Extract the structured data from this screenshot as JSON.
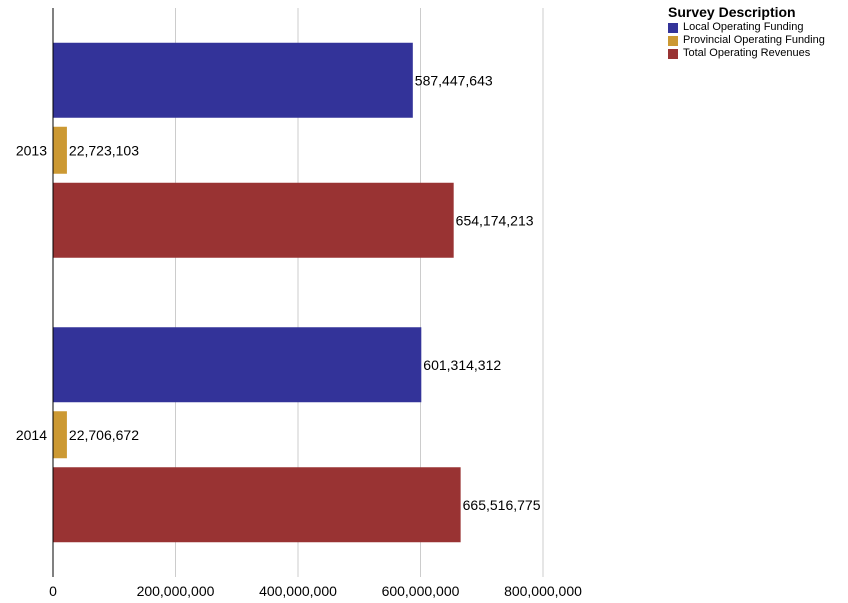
{
  "chart_data": {
    "type": "bar",
    "orientation": "horizontal",
    "categories": [
      "2013",
      "2014"
    ],
    "series": [
      {
        "name": "Local Operating Funding",
        "color": "#333399",
        "values": [
          587447643,
          601314312
        ],
        "labels": [
          "587,447,643",
          "601,314,312"
        ]
      },
      {
        "name": "Provincial Operating Funding",
        "color": "#cc9933",
        "values": [
          22723103,
          22706672
        ],
        "labels": [
          "22,723,103",
          "22,706,672"
        ]
      },
      {
        "name": "Total Operating Revenues",
        "color": "#993333",
        "values": [
          654174213,
          665516775
        ],
        "labels": [
          "654,174,213",
          "665,516,775"
        ]
      }
    ],
    "xlim": [
      0,
      800000000
    ],
    "x_ticks": [
      0,
      200000000,
      400000000,
      600000000,
      800000000
    ],
    "x_tick_labels": [
      "0",
      "200,000,000",
      "400,000,000",
      "600,000,000",
      "800,000,000"
    ],
    "grid": true,
    "legend": {
      "title": "Survey Description",
      "position": "top-right"
    }
  }
}
